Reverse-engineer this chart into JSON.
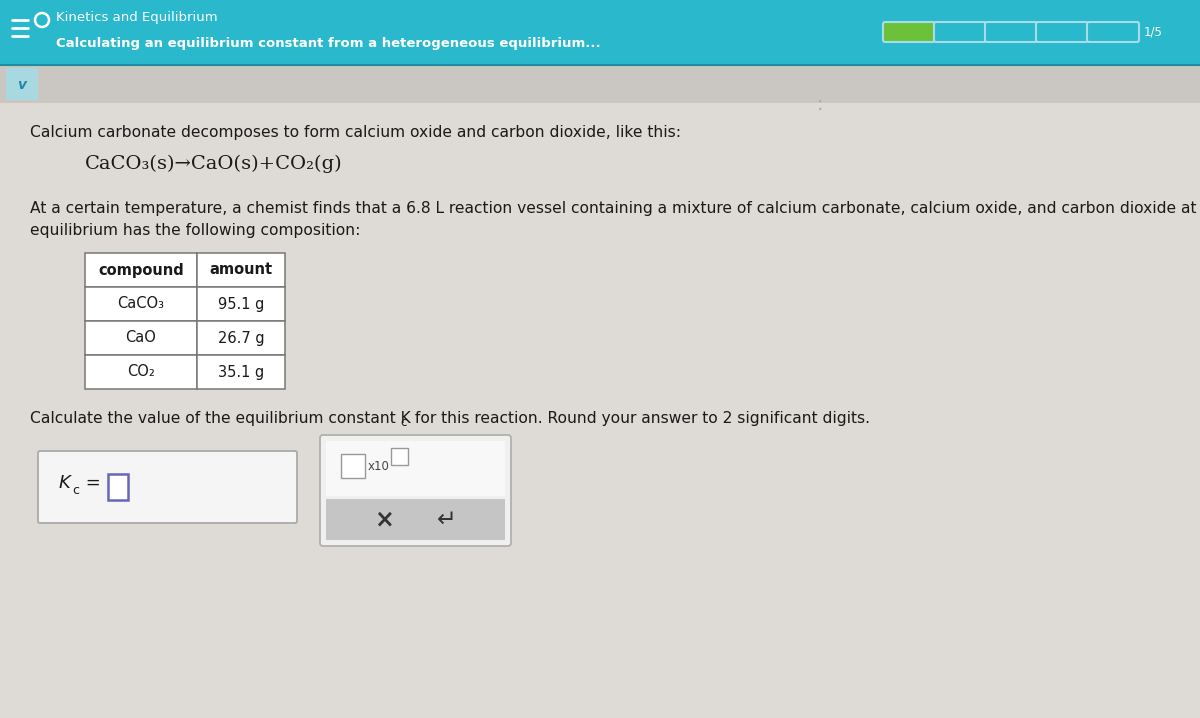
{
  "title_main": "Kinetics and Equilibrium",
  "title_sub": "Calculating an equilibrium constant from a heterogeneous equilibrium...",
  "header_bg": "#29b8cc",
  "header_text_color": "#ffffff",
  "body_bg": "#dedad5",
  "body_text_color": "#1a1a1a",
  "progress_green": "#6dc03a",
  "progress_border": "#a8dde6",
  "progress_total": 5,
  "paragraph1": "Calcium carbonate decomposes to form calcium oxide and carbon dioxide, like this:",
  "equation": "CaCO₃(s)→CaO(s)+CO₂(g)",
  "paragraph2a": "At a certain temperature, a chemist finds that a 6.8 L reaction vessel containing a mixture of calcium carbonate, calcium oxide, and carbon dioxide at",
  "paragraph2b": "equilibrium has the following composition:",
  "table_headers": [
    "compound",
    "amount"
  ],
  "table_rows": [
    [
      "CaCO₃",
      "95.1 g"
    ],
    [
      "CaO",
      "26.7 g"
    ],
    [
      "CO₂",
      "35.1 g"
    ]
  ],
  "question_a": "Calculate the value of the equilibrium constant K",
  "question_b": " for this reaction. Round your answer to 2 significant digits.",
  "x_symbol": "×",
  "undo_symbol": "↵",
  "table_border_color": "#777777",
  "table_cell_bg": "#ffffff",
  "chevron_bg": "#a8d8e0",
  "chevron_color": "#2288aa"
}
